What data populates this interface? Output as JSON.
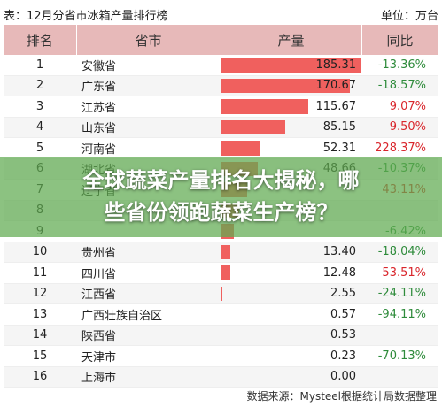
{
  "header": {
    "title": "表：12月分省市冰箱产量排行榜",
    "unit": "单位：万台"
  },
  "columns": [
    "排名",
    "省市",
    "产量",
    "同比"
  ],
  "rows": [
    {
      "rank": "1",
      "province": "安徽省",
      "value": "185.31",
      "yoy": "-13.36%"
    },
    {
      "rank": "2",
      "province": "广东省",
      "value": "170.67",
      "yoy": "-18.57%"
    },
    {
      "rank": "3",
      "province": "江苏省",
      "value": "115.67",
      "yoy": "9.07%"
    },
    {
      "rank": "4",
      "province": "山东省",
      "value": "85.15",
      "yoy": "9.50%"
    },
    {
      "rank": "5",
      "province": "河南省",
      "value": "52.31",
      "yoy": "228.37%"
    },
    {
      "rank": "6",
      "province": "湖北省",
      "value": "48.66",
      "yoy": "-10.37%"
    },
    {
      "rank": "7",
      "province": "辽宁省",
      "value": "",
      "yoy": "43.11%"
    },
    {
      "rank": "8",
      "province": "",
      "value": "",
      "yoy": ""
    },
    {
      "rank": "9",
      "province": "",
      "value": "",
      "yoy": "-6.42%"
    },
    {
      "rank": "10",
      "province": "贵州省",
      "value": "13.40",
      "yoy": "-18.04%"
    },
    {
      "rank": "11",
      "province": "四川省",
      "value": "12.48",
      "yoy": "53.51%"
    },
    {
      "rank": "12",
      "province": "江西省",
      "value": "2.55",
      "yoy": "-24.11%"
    },
    {
      "rank": "13",
      "province": "广西壮族自治区",
      "value": "0.57",
      "yoy": "-94.11%"
    },
    {
      "rank": "14",
      "province": "陕西省",
      "value": "0.53",
      "yoy": ""
    },
    {
      "rank": "15",
      "province": "天津市",
      "value": "0.23",
      "yoy": "-70.13%"
    },
    {
      "rank": "16",
      "province": "上海市",
      "value": "0.00",
      "yoy": ""
    }
  ],
  "source": "数据来源：Mysteel根据统计局数据整理",
  "banner": {
    "line1": "全球蔬菜产量排名大揭秘，哪",
    "line2": "些省份领跑蔬菜生产榜？"
  },
  "chart_data": {
    "type": "table",
    "categories": [
      "安徽省",
      "广东省",
      "江苏省",
      "山东省",
      "河南省",
      "湖北省",
      "辽宁省",
      "",
      "",
      "贵州省",
      "四川省",
      "江西省",
      "广西壮族自治区",
      "陕西省",
      "天津市",
      "上海市"
    ],
    "values": [
      185.31,
      170.67,
      115.67,
      85.15,
      52.31,
      48.66,
      35,
      25,
      18,
      13.4,
      12.48,
      2.55,
      0.57,
      0.53,
      0.23,
      0.0
    ],
    "xmax": 185.31
  },
  "colors": {
    "bar": "#f0605e",
    "header": "#e7b9b9",
    "positive": "#d9262c",
    "negative": "#2e8b3b",
    "banner": "#5faa50"
  }
}
